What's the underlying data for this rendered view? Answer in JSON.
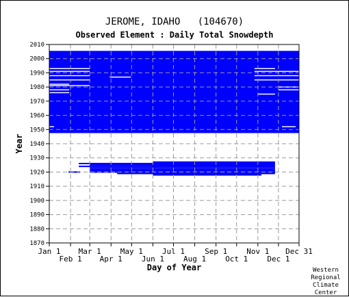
{
  "title": "JEROME, IDAHO   (104670)",
  "subtitle": "Observed Element : Daily Total Snowdepth",
  "footer": [
    "Western",
    "Regional",
    "Climate",
    "Center"
  ],
  "colors": {
    "data": "#0000ff",
    "grid": "#999999",
    "axis": "#000000"
  },
  "chart_data": {
    "type": "heatmap",
    "xlabel": "Day of Year",
    "ylabel": "Year",
    "ylim": [
      1870,
      2010
    ],
    "xlim": [
      1,
      365
    ],
    "yticks": [
      1870,
      1880,
      1890,
      1900,
      1910,
      1920,
      1930,
      1940,
      1950,
      1960,
      1970,
      1980,
      1990,
      2000,
      2010
    ],
    "xticks": [
      {
        "label": "Jan 1",
        "day": 1,
        "row": "top"
      },
      {
        "label": "Feb 1",
        "day": 32,
        "row": "bottom"
      },
      {
        "label": "Mar 1",
        "day": 60,
        "row": "top"
      },
      {
        "label": "Apr 1",
        "day": 91,
        "row": "bottom"
      },
      {
        "label": "May 1",
        "day": 121,
        "row": "top"
      },
      {
        "label": "Jun 1",
        "day": 152,
        "row": "bottom"
      },
      {
        "label": "Jul 1",
        "day": 182,
        "row": "top"
      },
      {
        "label": "Aug 1",
        "day": 213,
        "row": "bottom"
      },
      {
        "label": "Sep 1",
        "day": 244,
        "row": "top"
      },
      {
        "label": "Oct 1",
        "day": 274,
        "row": "bottom"
      },
      {
        "label": "Nov 1",
        "day": 305,
        "row": "top"
      },
      {
        "label": "Dec 1",
        "day": 335,
        "row": "bottom"
      },
      {
        "label": "Dec 31",
        "day": 365,
        "row": "top"
      }
    ],
    "coverage": [
      {
        "years": [
          1948,
          2005
        ],
        "days": [
          1,
          365
        ]
      },
      {
        "years": [
          1949,
          1949
        ],
        "days": [
          182,
          200
        ]
      },
      {
        "years": [
          1924,
          1924
        ],
        "days": [
          44,
          160
        ]
      },
      {
        "years": [
          1926,
          1926
        ],
        "days": [
          44,
          160
        ]
      },
      {
        "years": [
          1925,
          1925
        ],
        "days": [
          60,
          160
        ]
      },
      {
        "years": [
          1923,
          1923
        ],
        "days": [
          60,
          330
        ]
      },
      {
        "years": [
          1921,
          1922
        ],
        "days": [
          60,
          330
        ]
      },
      {
        "years": [
          1924,
          1927
        ],
        "days": [
          152,
          330
        ]
      },
      {
        "years": [
          1927,
          1927
        ],
        "days": [
          152,
          274
        ]
      },
      {
        "years": [
          1920,
          1920
        ],
        "days": [
          60,
          330
        ]
      },
      {
        "years": [
          1919,
          1919
        ],
        "days": [
          100,
          330
        ]
      },
      {
        "years": [
          1918,
          1918
        ],
        "days": [
          152,
          310
        ]
      },
      {
        "years": [
          1920,
          1920
        ],
        "days": [
          29,
          46
        ]
      }
    ],
    "gaps": [
      {
        "years": [
          1993,
          1993
        ],
        "days": [
          1,
          60
        ]
      },
      {
        "years": [
          1991,
          1991
        ],
        "days": [
          1,
          60
        ]
      },
      {
        "years": [
          1988,
          1988
        ],
        "days": [
          1,
          60
        ]
      },
      {
        "years": [
          1985,
          1985
        ],
        "days": [
          1,
          60
        ]
      },
      {
        "years": [
          1982,
          1982
        ],
        "days": [
          1,
          30
        ]
      },
      {
        "years": [
          1981,
          1981
        ],
        "days": [
          1,
          60
        ]
      },
      {
        "years": [
          1978,
          1978
        ],
        "days": [
          1,
          30
        ]
      },
      {
        "years": [
          1976,
          1976
        ],
        "days": [
          1,
          30
        ]
      },
      {
        "years": [
          1987,
          1987
        ],
        "days": [
          89,
          120
        ]
      },
      {
        "years": [
          1993,
          1993
        ],
        "days": [
          300,
          330
        ]
      },
      {
        "years": [
          1991,
          1991
        ],
        "days": [
          300,
          365
        ]
      },
      {
        "years": [
          1988,
          1988
        ],
        "days": [
          300,
          365
        ]
      },
      {
        "years": [
          1985,
          1985
        ],
        "days": [
          300,
          365
        ]
      },
      {
        "years": [
          1980,
          1980
        ],
        "days": [
          335,
          365
        ]
      },
      {
        "years": [
          1978,
          1978
        ],
        "days": [
          335,
          365
        ]
      },
      {
        "years": [
          1975,
          1975
        ],
        "days": [
          305,
          330
        ]
      },
      {
        "years": [
          1952,
          1952
        ],
        "days": [
          1,
          8
        ]
      },
      {
        "years": [
          1952,
          1952
        ],
        "days": [
          340,
          360
        ]
      }
    ]
  }
}
